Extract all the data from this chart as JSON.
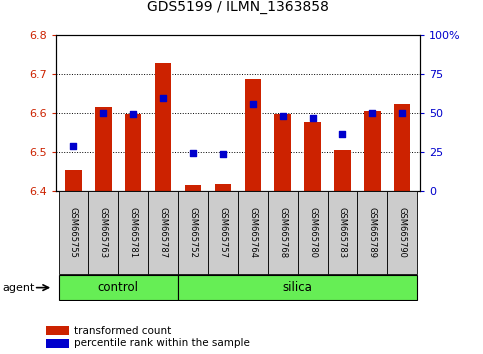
{
  "title": "GDS5199 / ILMN_1363858",
  "samples": [
    "GSM665755",
    "GSM665763",
    "GSM665781",
    "GSM665787",
    "GSM665752",
    "GSM665757",
    "GSM665764",
    "GSM665768",
    "GSM665780",
    "GSM665783",
    "GSM665789",
    "GSM665790"
  ],
  "red_values": [
    6.455,
    6.615,
    6.598,
    6.728,
    6.415,
    6.418,
    6.688,
    6.598,
    6.578,
    6.505,
    6.605,
    6.625
  ],
  "blue_values": [
    6.515,
    6.602,
    6.598,
    6.64,
    6.497,
    6.495,
    6.624,
    6.592,
    6.588,
    6.546,
    6.602,
    6.602
  ],
  "ylim_left": [
    6.4,
    6.8
  ],
  "ylim_right": [
    0,
    100
  ],
  "yticks_left": [
    6.4,
    6.5,
    6.6,
    6.7,
    6.8
  ],
  "yticks_right": [
    0,
    25,
    50,
    75,
    100
  ],
  "ytick_labels_right": [
    "0",
    "25",
    "50",
    "75",
    "100%"
  ],
  "bar_color": "#cc2200",
  "dot_color": "#0000cc",
  "baseline": 6.4,
  "control_label": "control",
  "silica_label": "silica",
  "agent_label": "agent",
  "legend_red": "transformed count",
  "legend_blue": "percentile rank within the sample",
  "control_count": 4,
  "silica_count": 8,
  "group_bg_color": "#66ee55",
  "tick_label_bg": "#cccccc",
  "title_fontsize": 10
}
